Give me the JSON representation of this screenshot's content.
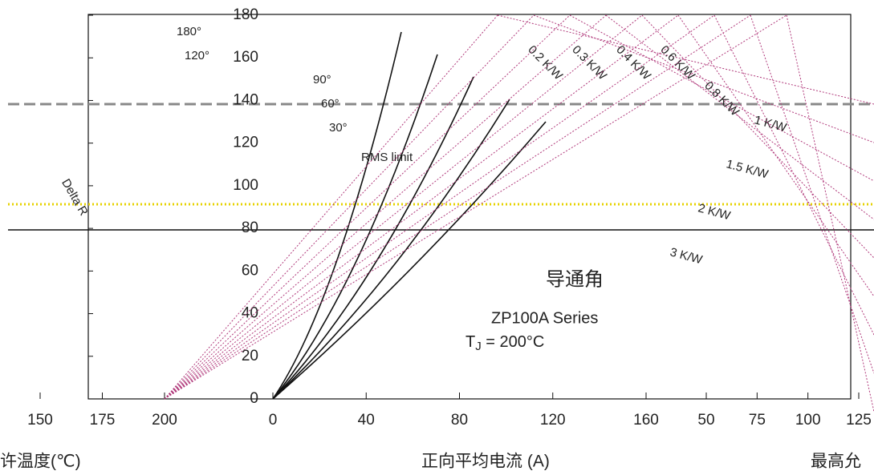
{
  "y_axis": {
    "ticks": [
      0,
      20,
      40,
      60,
      80,
      100,
      120,
      140,
      160,
      180
    ]
  },
  "x_axis_current": {
    "ticks": [
      0,
      40,
      80,
      120,
      160
    ],
    "label": "正向平均电流 (A)"
  },
  "x_axis_case_temp": {
    "ticks": [
      150,
      175,
      200
    ],
    "label": "许温度(℃)"
  },
  "x_axis_ambient": {
    "ticks": [
      50,
      75,
      100,
      125
    ],
    "label": "最高允"
  },
  "conduction_angles": [
    "180°",
    "120°",
    "90°",
    "60°",
    "30°"
  ],
  "rms_limit": "RMS limit",
  "delta_r": "Delta R",
  "thermal_resistances": [
    "0.2 K/W",
    "0.3 K/W",
    "0.4 K/W",
    "0.6 K/W",
    "0.8 K/W",
    "1 K/W",
    "1.5 K/W",
    "2 K/W",
    "3 K/W"
  ],
  "legend_title": "导通角",
  "series_name": "ZP100A Series",
  "junction": {
    "symbol": "T",
    "subscript": "J",
    "rest": " = 200°C"
  }
}
